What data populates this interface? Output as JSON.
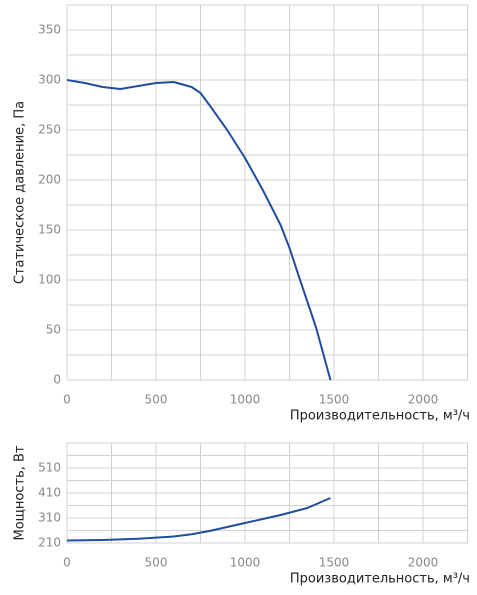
{
  "chart_data": [
    {
      "type": "line",
      "ylabel": "Статическое давление, Па",
      "xlabel": "Производительность, м³/ч",
      "xlim": [
        0,
        2250
      ],
      "xticks": [
        0,
        500,
        1000,
        1500,
        2000
      ],
      "ylim": [
        0,
        375
      ],
      "yticks": [
        0,
        50,
        100,
        150,
        200,
        250,
        300,
        350
      ],
      "grid": true,
      "minor_grid": true,
      "series": [
        {
          "color": "#1f4e9c",
          "x": [
            0,
            100,
            200,
            300,
            400,
            500,
            600,
            700,
            750,
            800,
            900,
            1000,
            1100,
            1200,
            1250,
            1300,
            1400,
            1480
          ],
          "values": [
            300,
            297,
            293,
            291,
            294,
            297,
            298,
            293,
            287,
            275,
            250,
            222,
            190,
            155,
            132,
            105,
            52,
            0
          ]
        }
      ]
    },
    {
      "type": "line",
      "ylabel": "Мощность, Вт",
      "xlabel": "Производительность, м³/ч",
      "xlim": [
        0,
        2250
      ],
      "xticks": [
        0,
        500,
        1000,
        1500,
        2000
      ],
      "ylim": [
        210,
        610
      ],
      "yticks": [
        210,
        310,
        410,
        510
      ],
      "grid": true,
      "minor_grid": true,
      "series": [
        {
          "color": "#1f4e9c",
          "x": [
            0,
            200,
            400,
            600,
            700,
            800,
            1000,
            1200,
            1350,
            1480
          ],
          "values": [
            220,
            222,
            227,
            236,
            245,
            258,
            290,
            322,
            350,
            390
          ]
        }
      ]
    }
  ]
}
